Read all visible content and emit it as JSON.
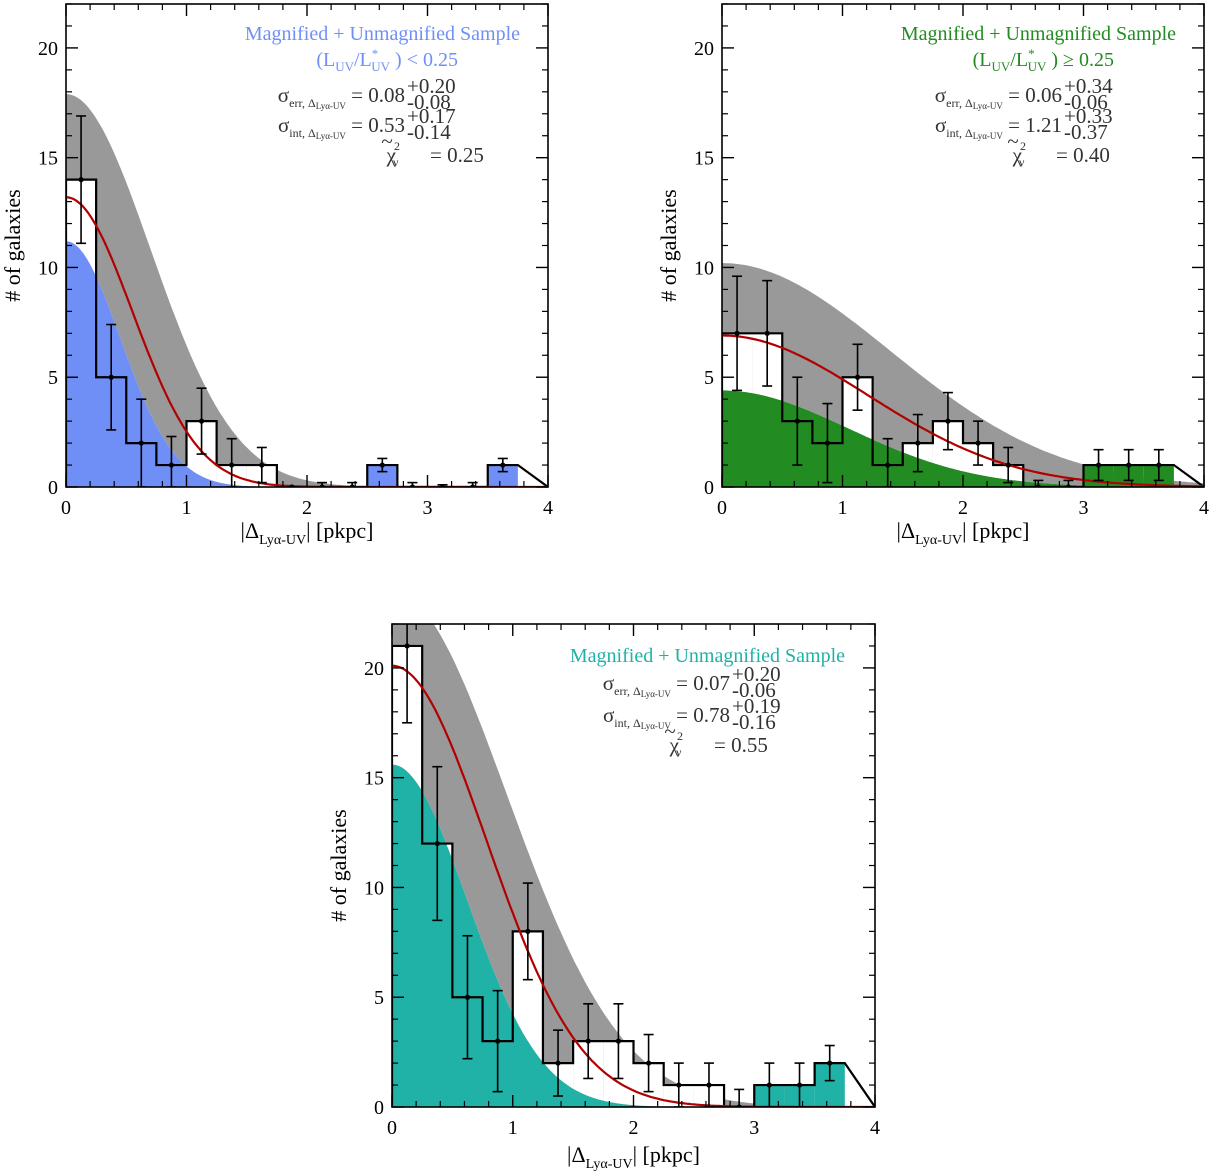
{
  "chart_data": [
    {
      "type": "bar",
      "id": "panel-low-luv",
      "title": "Magnified + Unmagnified Sample",
      "subtitle_prefix": "(L",
      "subtitle_uv1": "UV",
      "subtitle_slash": "/L",
      "subtitle_star": "*",
      "subtitle_uv2": "UV",
      "subtitle_suffix": " ) < 0.25",
      "title_color": "#6f8ff7",
      "fill_color": "#6f8ff7",
      "xlabel_bar": "|Δ",
      "xlabel_sub": "Lyα-UV",
      "xlabel_rest": "| [pkpc]",
      "ylabel": "# of galaxies",
      "xlim": [
        0,
        4
      ],
      "ylim": [
        0,
        22
      ],
      "xticks": [
        "0",
        "1",
        "2",
        "3",
        "4"
      ],
      "yticks": [
        "0",
        "5",
        "10",
        "15",
        "20"
      ],
      "bin_edges": [
        0,
        0.25,
        0.5,
        0.75,
        1.0,
        1.25,
        1.5,
        1.75,
        2.0,
        2.25,
        2.5,
        2.75,
        3.0,
        3.25,
        3.5,
        3.75
      ],
      "counts": [
        14,
        5,
        2,
        1,
        3,
        1,
        1,
        0,
        0,
        0,
        1,
        0,
        0,
        0,
        1
      ],
      "errors": [
        2.9,
        2.4,
        2.0,
        1.3,
        1.5,
        1.2,
        0.8,
        0,
        0.2,
        0.2,
        0.3,
        0.2,
        0.1,
        0.2,
        0.3
      ],
      "filled_bins": [
        10,
        14
      ],
      "model_peak": 13.2,
      "model_sigma": 0.55,
      "band_upper_peak": 17.9,
      "band_upper_sigma": 0.7,
      "band_lower_peak": 11.2,
      "band_lower_sigma": 0.45,
      "stat_err_label": "σ",
      "stat_err_sub": "err, Δ",
      "stat_err_sub2": "Lyα-UV",
      "stat_err_value": " = 0.08",
      "stat_err_up": "+0.20",
      "stat_err_down": "-0.08",
      "stat_int_label": "σ",
      "stat_int_sub": "int, Δ",
      "stat_int_sub2": "Lyα-UV",
      "stat_int_value": " = 0.53",
      "stat_int_up": "+0.17",
      "stat_int_down": "-0.14",
      "chi_label": "χ",
      "chi_sub": "ν",
      "chi_sup": "2",
      "chi_value": "= 0.25"
    },
    {
      "type": "bar",
      "id": "panel-high-luv",
      "title": "Magnified + Unmagnified Sample",
      "subtitle_prefix": "(L",
      "subtitle_uv1": "UV",
      "subtitle_slash": "/L",
      "subtitle_star": "*",
      "subtitle_uv2": "UV",
      "subtitle_suffix": " ) ≥ 0.25",
      "title_color": "#228b22",
      "fill_color": "#228b22",
      "xlabel_bar": "|Δ",
      "xlabel_sub": "Lyα-UV",
      "xlabel_rest": "| [pkpc]",
      "ylabel": "# of galaxies",
      "xlim": [
        0,
        4
      ],
      "ylim": [
        0,
        22
      ],
      "xticks": [
        "0",
        "1",
        "2",
        "3",
        "4"
      ],
      "yticks": [
        "0",
        "5",
        "10",
        "15",
        "20"
      ],
      "bin_edges": [
        0,
        0.25,
        0.5,
        0.75,
        1.0,
        1.25,
        1.5,
        1.75,
        2.0,
        2.25,
        2.5,
        2.75,
        3.0,
        3.25,
        3.5,
        3.75
      ],
      "counts": [
        7,
        7,
        3,
        2,
        5,
        1,
        2,
        3,
        2,
        1,
        0,
        0,
        1,
        1,
        1
      ],
      "errors": [
        2.6,
        2.4,
        2.0,
        1.8,
        1.5,
        1.2,
        1.3,
        1.3,
        1.0,
        0.8,
        0.3,
        0.3,
        0.7,
        0.7,
        0.7
      ],
      "filled_bins": [
        12,
        13,
        14
      ],
      "model_peak": 6.9,
      "model_sigma": 1.21,
      "band_upper_peak": 10.2,
      "band_upper_sigma": 1.4,
      "band_lower_peak": 4.4,
      "band_lower_sigma": 1.05,
      "stat_err_label": "σ",
      "stat_err_sub": "err, Δ",
      "stat_err_sub2": "Lyα-UV",
      "stat_err_value": " = 0.06",
      "stat_err_up": "+0.34",
      "stat_err_down": "-0.06",
      "stat_int_label": "σ",
      "stat_int_sub": "int, Δ",
      "stat_int_sub2": "Lyα-UV",
      "stat_int_value": " = 1.21",
      "stat_int_up": "+0.33",
      "stat_int_down": "-0.37",
      "chi_label": "χ",
      "chi_sub": "ν",
      "chi_sup": "2",
      "chi_value": "= 0.40"
    },
    {
      "type": "bar",
      "id": "panel-all",
      "title": "Magnified + Unmagnified Sample",
      "title_color": "#20b2a6",
      "fill_color": "#20b2a6",
      "xlabel_bar": "|Δ",
      "xlabel_sub": "Lyα-UV",
      "xlabel_rest": "| [pkpc]",
      "ylabel": "# of galaxies",
      "xlim": [
        0,
        4
      ],
      "ylim": [
        0,
        22
      ],
      "xticks": [
        "0",
        "1",
        "2",
        "3",
        "4"
      ],
      "yticks": [
        "0",
        "5",
        "10",
        "15",
        "20"
      ],
      "bin_edges": [
        0,
        0.25,
        0.5,
        0.75,
        1.0,
        1.25,
        1.5,
        1.75,
        2.0,
        2.25,
        2.5,
        2.75,
        3.0,
        3.25,
        3.5,
        3.75
      ],
      "counts": [
        21,
        12,
        5,
        3,
        8,
        2,
        3,
        3,
        2,
        1,
        1,
        0,
        1,
        1,
        2
      ],
      "errors": [
        3.5,
        3.5,
        2.8,
        2.3,
        2.2,
        1.5,
        1.7,
        1.7,
        1.3,
        1.0,
        1.0,
        0.8,
        1.0,
        1.0,
        0.8
      ],
      "filled_bins": [
        12,
        13,
        14
      ],
      "model_peak": 20.1,
      "model_sigma": 0.78,
      "band_upper_peak": 23.5,
      "band_upper_sigma": 0.95,
      "band_lower_peak": 15.6,
      "band_lower_sigma": 0.62,
      "stat_err_label": "σ",
      "stat_err_sub": "err, Δ",
      "stat_err_sub2": "Lyα-UV",
      "stat_err_value": " = 0.07",
      "stat_err_up": "+0.20",
      "stat_err_down": "-0.06",
      "stat_int_label": "σ",
      "stat_int_sub": "int, Δ",
      "stat_int_sub2": "Lyα-UV",
      "stat_int_value": " = 0.78",
      "stat_int_up": "+0.19",
      "stat_int_down": "-0.16",
      "chi_label": "χ",
      "chi_sub": "ν",
      "chi_sup": "2",
      "chi_value": "= 0.55"
    }
  ],
  "colors": {
    "band": "#999999",
    "model_line": "#b30000",
    "axis": "#000000",
    "annotation": "#333333"
  }
}
